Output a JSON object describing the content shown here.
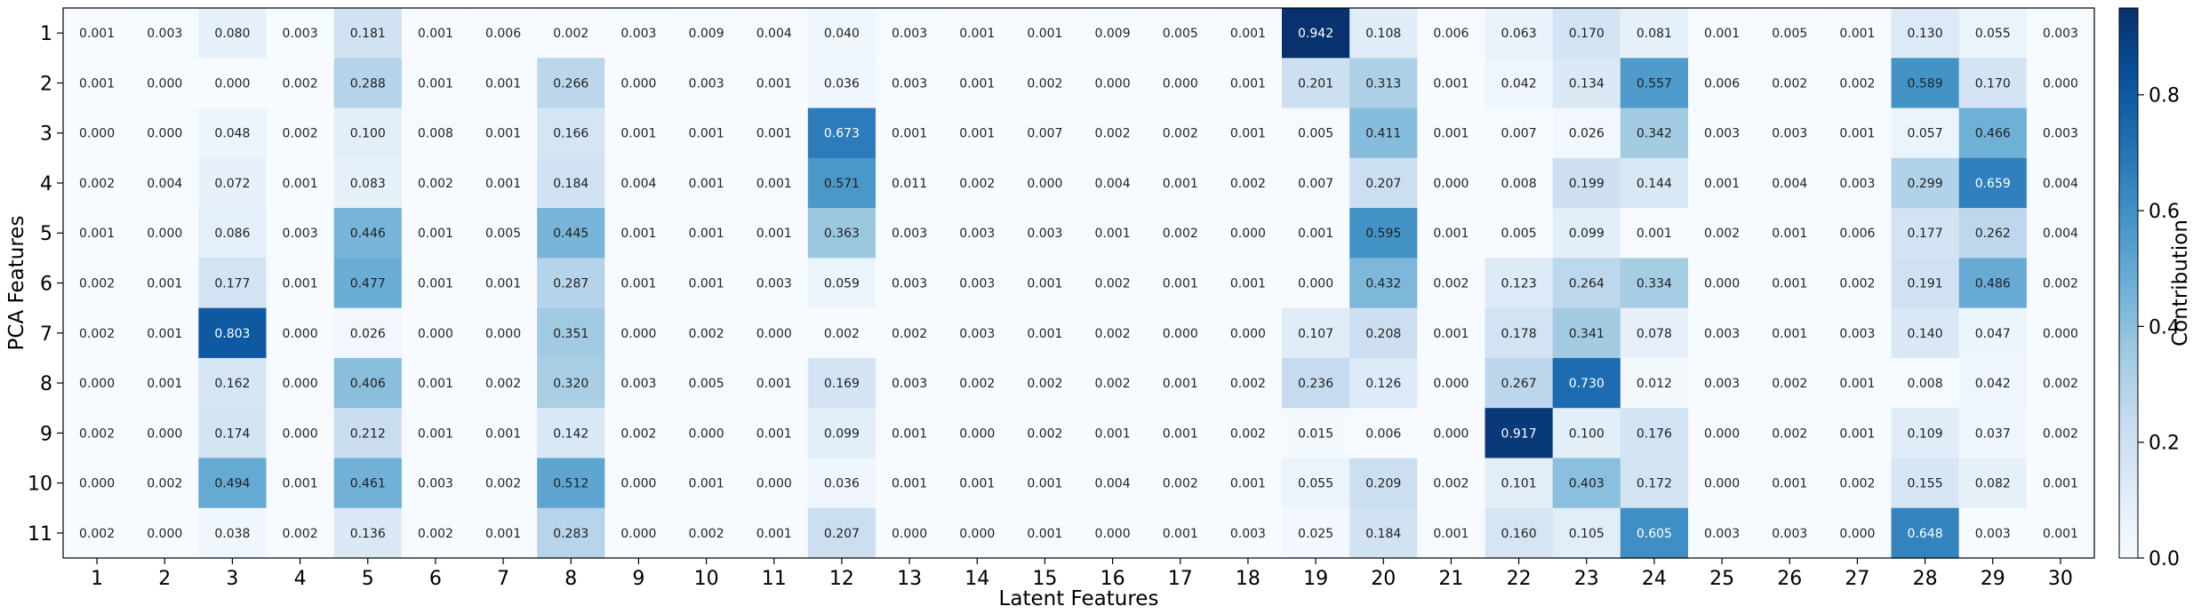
{
  "chart_data": {
    "type": "heatmap",
    "xlabel": "Latent Features",
    "ylabel": "PCA Features",
    "colorbar_label": "Contribution",
    "x_categories": [
      "1",
      "2",
      "3",
      "4",
      "5",
      "6",
      "7",
      "8",
      "9",
      "10",
      "11",
      "12",
      "13",
      "14",
      "15",
      "16",
      "17",
      "18",
      "19",
      "20",
      "21",
      "22",
      "23",
      "24",
      "25",
      "26",
      "27",
      "28",
      "29",
      "30"
    ],
    "y_categories": [
      "1",
      "2",
      "3",
      "4",
      "5",
      "6",
      "7",
      "8",
      "9",
      "10",
      "11"
    ],
    "value_range": [
      0.0,
      0.95
    ],
    "colorbar_ticks": [
      {
        "value": 0.0,
        "label": "0.0"
      },
      {
        "value": 0.2,
        "label": "0.2"
      },
      {
        "value": 0.4,
        "label": "0.4"
      },
      {
        "value": 0.6,
        "label": "0.6"
      },
      {
        "value": 0.8,
        "label": "0.8"
      }
    ],
    "colormap": [
      "#f7fbff",
      "#deebf7",
      "#c6dbef",
      "#9ecae1",
      "#6baed6",
      "#4292c6",
      "#2171b5",
      "#08519c",
      "#08306b"
    ],
    "values": [
      [
        0.001,
        0.003,
        0.08,
        0.003,
        0.181,
        0.001,
        0.006,
        0.002,
        0.003,
        0.009,
        0.004,
        0.04,
        0.003,
        0.001,
        0.001,
        0.009,
        0.005,
        0.001,
        0.942,
        0.108,
        0.006,
        0.063,
        0.17,
        0.081,
        0.001,
        0.005,
        0.001,
        0.13,
        0.055,
        0.003
      ],
      [
        0.001,
        0.0,
        0.0,
        0.002,
        0.288,
        0.001,
        0.001,
        0.266,
        0.0,
        0.003,
        0.001,
        0.036,
        0.003,
        0.001,
        0.002,
        0.0,
        0.0,
        0.001,
        0.201,
        0.313,
        0.001,
        0.042,
        0.134,
        0.557,
        0.006,
        0.002,
        0.002,
        0.589,
        0.17,
        0.0
      ],
      [
        0.0,
        0.0,
        0.048,
        0.002,
        0.1,
        0.008,
        0.001,
        0.166,
        0.001,
        0.001,
        0.001,
        0.673,
        0.001,
        0.001,
        0.007,
        0.002,
        0.002,
        0.001,
        0.005,
        0.411,
        0.001,
        0.007,
        0.026,
        0.342,
        0.003,
        0.003,
        0.001,
        0.057,
        0.466,
        0.003
      ],
      [
        0.002,
        0.004,
        0.072,
        0.001,
        0.083,
        0.002,
        0.001,
        0.184,
        0.004,
        0.001,
        0.001,
        0.571,
        0.011,
        0.002,
        0.0,
        0.004,
        0.001,
        0.002,
        0.007,
        0.207,
        0.0,
        0.008,
        0.199,
        0.144,
        0.001,
        0.004,
        0.003,
        0.299,
        0.659,
        0.004
      ],
      [
        0.001,
        0.0,
        0.086,
        0.003,
        0.446,
        0.001,
        0.005,
        0.445,
        0.001,
        0.001,
        0.001,
        0.363,
        0.003,
        0.003,
        0.003,
        0.001,
        0.002,
        0.0,
        0.001,
        0.595,
        0.001,
        0.005,
        0.099,
        0.001,
        0.002,
        0.001,
        0.006,
        0.177,
        0.262,
        0.004
      ],
      [
        0.002,
        0.001,
        0.177,
        0.001,
        0.477,
        0.001,
        0.001,
        0.287,
        0.001,
        0.001,
        0.003,
        0.059,
        0.003,
        0.003,
        0.001,
        0.002,
        0.001,
        0.001,
        0.0,
        0.432,
        0.002,
        0.123,
        0.264,
        0.334,
        0.0,
        0.001,
        0.002,
        0.191,
        0.486,
        0.002
      ],
      [
        0.002,
        0.001,
        0.803,
        0.0,
        0.026,
        0.0,
        0.0,
        0.351,
        0.0,
        0.002,
        0.0,
        0.002,
        0.002,
        0.003,
        0.001,
        0.002,
        0.0,
        0.0,
        0.107,
        0.208,
        0.001,
        0.178,
        0.341,
        0.078,
        0.003,
        0.001,
        0.003,
        0.14,
        0.047,
        0.0
      ],
      [
        0.0,
        0.001,
        0.162,
        0.0,
        0.406,
        0.001,
        0.002,
        0.32,
        0.003,
        0.005,
        0.001,
        0.169,
        0.003,
        0.002,
        0.002,
        0.002,
        0.001,
        0.002,
        0.236,
        0.126,
        0.0,
        0.267,
        0.73,
        0.012,
        0.003,
        0.002,
        0.001,
        0.008,
        0.042,
        0.002
      ],
      [
        0.002,
        0.0,
        0.174,
        0.0,
        0.212,
        0.001,
        0.001,
        0.142,
        0.002,
        0.0,
        0.001,
        0.099,
        0.001,
        0.0,
        0.002,
        0.001,
        0.001,
        0.002,
        0.015,
        0.006,
        0.0,
        0.917,
        0.1,
        0.176,
        0.0,
        0.002,
        0.001,
        0.109,
        0.037,
        0.002
      ],
      [
        0.0,
        0.002,
        0.494,
        0.001,
        0.461,
        0.003,
        0.002,
        0.512,
        0.0,
        0.001,
        0.0,
        0.036,
        0.001,
        0.001,
        0.001,
        0.004,
        0.002,
        0.001,
        0.055,
        0.209,
        0.002,
        0.101,
        0.403,
        0.172,
        0.0,
        0.001,
        0.002,
        0.155,
        0.082,
        0.001
      ],
      [
        0.002,
        0.0,
        0.038,
        0.002,
        0.136,
        0.002,
        0.001,
        0.283,
        0.0,
        0.002,
        0.001,
        0.207,
        0.0,
        0.0,
        0.001,
        0.0,
        0.001,
        0.003,
        0.025,
        0.184,
        0.001,
        0.16,
        0.105,
        0.605,
        0.003,
        0.003,
        0.0,
        0.648,
        0.003,
        0.001
      ]
    ]
  }
}
